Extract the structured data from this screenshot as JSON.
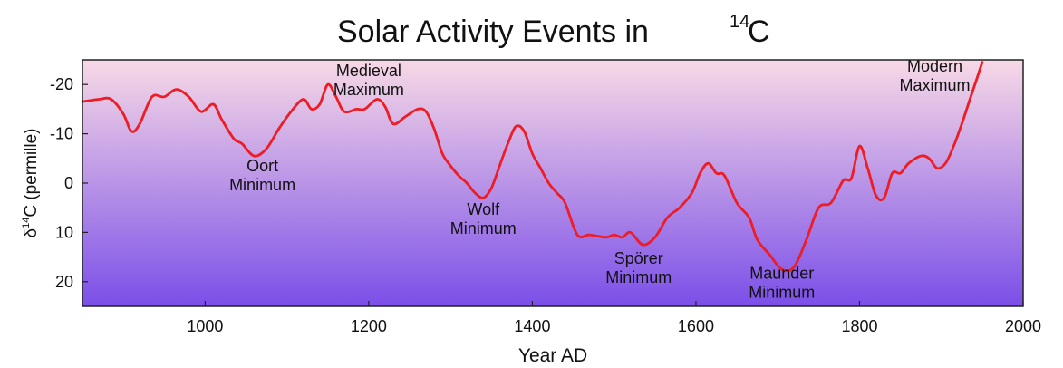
{
  "chart_data": {
    "type": "line",
    "title_main": "Solar Activity Events in",
    "title_isotope": "14",
    "title_element": "C",
    "xlabel": "Year AD",
    "ylabel_prefix": "δ",
    "ylabel_sup": "14",
    "ylabel_suffix": "C (permille)",
    "xlim": [
      850,
      2000
    ],
    "ylim": [
      -25,
      25
    ],
    "y_inverted": true,
    "xticks": [
      1000,
      1200,
      1400,
      1600,
      1800,
      2000
    ],
    "yticks": [
      -20,
      -10,
      0,
      10,
      20
    ],
    "background_gradient": {
      "top": "#f7d9e6",
      "bottom": "#7b4fe8"
    },
    "line_color": "#ee1c24",
    "series": [
      {
        "x": [
          850,
          870,
          885,
          900,
          910,
          920,
          935,
          950,
          965,
          980,
          995,
          1010,
          1020,
          1035,
          1045,
          1060,
          1075,
          1090,
          1105,
          1120,
          1130,
          1140,
          1150,
          1160,
          1170,
          1185,
          1195,
          1210,
          1220,
          1230,
          1245,
          1260,
          1270,
          1280,
          1290,
          1300,
          1310,
          1320,
          1330,
          1340,
          1350,
          1360,
          1370,
          1380,
          1390,
          1400,
          1410,
          1420,
          1430,
          1440,
          1455,
          1470,
          1490,
          1500,
          1510,
          1520,
          1535,
          1550,
          1565,
          1580,
          1595,
          1605,
          1615,
          1625,
          1635,
          1650,
          1665,
          1675,
          1690,
          1705,
          1720,
          1735,
          1750,
          1765,
          1780,
          1790,
          1800,
          1810,
          1820,
          1830,
          1840,
          1850,
          1860,
          1875,
          1885,
          1895,
          1905,
          1915,
          1925,
          1935,
          1945,
          1950
        ],
        "y": [
          -16.5,
          -17,
          -17,
          -14,
          -10.5,
          -12,
          -17.5,
          -17.5,
          -19,
          -17.5,
          -14.5,
          -16,
          -13,
          -9,
          -8,
          -5.5,
          -7,
          -11,
          -14.5,
          -17,
          -15,
          -16,
          -20,
          -17.5,
          -14.5,
          -15,
          -15,
          -17,
          -15.5,
          -12,
          -13.5,
          -15,
          -14.5,
          -11,
          -6,
          -3.5,
          -1.5,
          0,
          2,
          3,
          1,
          -3.5,
          -8,
          -11.5,
          -10.5,
          -6,
          -3,
          0,
          2,
          4,
          10.5,
          10.5,
          11,
          10.5,
          11,
          10,
          12.5,
          11,
          7,
          5,
          2,
          -2,
          -4,
          -2,
          -1.5,
          4,
          7,
          11.5,
          14.5,
          17.5,
          17,
          11.5,
          5,
          4,
          -0.5,
          -1,
          -7.5,
          -3,
          2.5,
          3,
          -2,
          -2,
          -4,
          -5.5,
          -5,
          -3,
          -4,
          -7.5,
          -12,
          -17,
          -22,
          -24.5
        ]
      }
    ],
    "annotations": [
      {
        "line1": "Oort",
        "line2": "Minimum",
        "x": 1070,
        "y": -2.4
      },
      {
        "line1": "Medieval",
        "line2": "Maximum",
        "x": 1200,
        "y": -21.7
      },
      {
        "line1": "Wolf",
        "line2": "Minimum",
        "x": 1340,
        "y": 6.4
      },
      {
        "line1": "Spörer",
        "line2": "Minimum",
        "x": 1530,
        "y": 16.4
      },
      {
        "line1": "Maunder",
        "line2": "Minimum",
        "x": 1705,
        "y": 19.4
      },
      {
        "line1": "Modern",
        "line2": "Maximum",
        "x": 1892,
        "y": -22.6
      }
    ]
  }
}
